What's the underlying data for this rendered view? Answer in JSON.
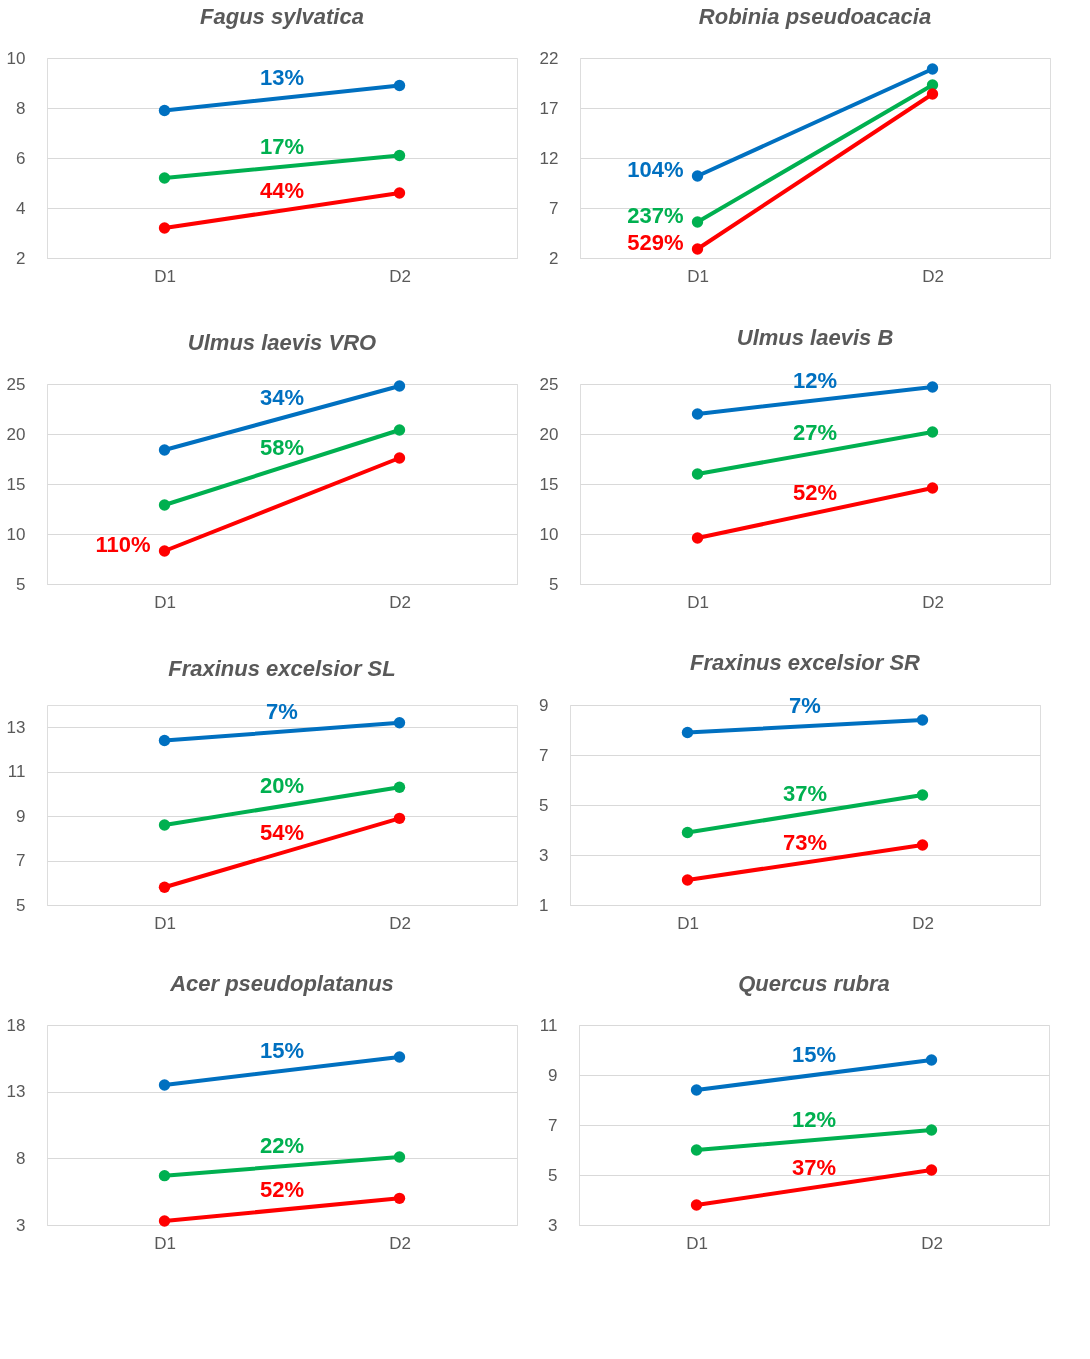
{
  "chart_data": [
    {
      "type": "line",
      "title": "Fagus sylvatica",
      "categories": [
        "D1",
        "D2"
      ],
      "ylim": [
        2,
        10
      ],
      "yticks": [
        2,
        4,
        6,
        8,
        10
      ],
      "grid": "y",
      "marker": "circle",
      "line_style": "solid",
      "series": [
        {
          "color": "#0070c0",
          "values": [
            7.9,
            8.9
          ]
        },
        {
          "color": "#00b050",
          "values": [
            5.2,
            6.1
          ]
        },
        {
          "color": "#ff0000",
          "values": [
            3.2,
            4.6
          ]
        }
      ],
      "annotations": [
        "13%",
        "17%",
        "44%"
      ]
    },
    {
      "type": "line",
      "title": "Robinia pseudoacacia",
      "categories": [
        "D1",
        "D2"
      ],
      "ylim": [
        2,
        22
      ],
      "yticks": [
        2,
        7,
        12,
        17,
        22
      ],
      "grid": "y",
      "marker": "circle",
      "line_style": "solid",
      "series": [
        {
          "color": "#0070c0",
          "values": [
            10.2,
            20.9
          ]
        },
        {
          "color": "#00b050",
          "values": [
            5.6,
            19.3
          ]
        },
        {
          "color": "#ff0000",
          "values": [
            2.9,
            18.4
          ]
        }
      ],
      "annotations": [
        "104%",
        "237%",
        "529%"
      ]
    },
    {
      "type": "line",
      "title": "Ulmus laevis VRO",
      "categories": [
        "D1",
        "D2"
      ],
      "ylim": [
        5,
        25
      ],
      "yticks": [
        5,
        10,
        15,
        20,
        25
      ],
      "grid": "y",
      "marker": "circle",
      "line_style": "solid",
      "series": [
        {
          "color": "#0070c0",
          "values": [
            18.4,
            24.8
          ]
        },
        {
          "color": "#00b050",
          "values": [
            12.9,
            20.4
          ]
        },
        {
          "color": "#ff0000",
          "values": [
            8.3,
            17.6
          ]
        }
      ],
      "annotations": [
        "34%",
        "58%",
        "110%"
      ]
    },
    {
      "type": "line",
      "title": "Ulmus laevis B",
      "categories": [
        "D1",
        "D2"
      ],
      "ylim": [
        5,
        25
      ],
      "yticks": [
        5,
        10,
        15,
        20,
        25
      ],
      "grid": "y",
      "marker": "circle",
      "line_style": "solid",
      "series": [
        {
          "color": "#0070c0",
          "values": [
            22.0,
            24.7
          ]
        },
        {
          "color": "#00b050",
          "values": [
            16.0,
            20.2
          ]
        },
        {
          "color": "#ff0000",
          "values": [
            9.6,
            14.6
          ]
        }
      ],
      "annotations": [
        "12%",
        "27%",
        "52%"
      ]
    },
    {
      "type": "line",
      "title": "Fraxinus excelsior SL",
      "categories": [
        "D1",
        "D2"
      ],
      "ylim": [
        5,
        14
      ],
      "yticks": [
        5,
        7,
        9,
        11,
        13
      ],
      "grid": "y",
      "marker": "circle",
      "line_style": "solid",
      "series": [
        {
          "color": "#0070c0",
          "values": [
            12.4,
            13.2
          ]
        },
        {
          "color": "#00b050",
          "values": [
            8.6,
            10.3
          ]
        },
        {
          "color": "#ff0000",
          "values": [
            5.8,
            8.9
          ]
        }
      ],
      "annotations": [
        "7%",
        "20%",
        "54%"
      ]
    },
    {
      "type": "line",
      "title": "Fraxinus excelsior SR",
      "categories": [
        "D1",
        "D2"
      ],
      "ylim": [
        1,
        9
      ],
      "yticks": [
        1,
        3,
        5,
        7,
        9
      ],
      "grid": "y",
      "marker": "circle",
      "line_style": "solid",
      "series": [
        {
          "color": "#0070c0",
          "values": [
            7.9,
            8.4
          ]
        },
        {
          "color": "#00b050",
          "values": [
            3.9,
            5.4
          ]
        },
        {
          "color": "#ff0000",
          "values": [
            2.0,
            3.4
          ]
        }
      ],
      "annotations": [
        "7%",
        "37%",
        "73%"
      ]
    },
    {
      "type": "line",
      "title": "Acer pseudoplatanus",
      "categories": [
        "D1",
        "D2"
      ],
      "ylim": [
        3,
        18
      ],
      "yticks": [
        3,
        8,
        13,
        18
      ],
      "grid": "y",
      "marker": "circle",
      "line_style": "solid",
      "series": [
        {
          "color": "#0070c0",
          "values": [
            13.5,
            15.6
          ]
        },
        {
          "color": "#00b050",
          "values": [
            6.7,
            8.1
          ]
        },
        {
          "color": "#ff0000",
          "values": [
            3.3,
            5.0
          ]
        }
      ],
      "annotations": [
        "15%",
        "22%",
        "52%"
      ]
    },
    {
      "type": "line",
      "title": "Quercus rubra",
      "categories": [
        "D1",
        "D2"
      ],
      "ylim": [
        3,
        11
      ],
      "yticks": [
        3,
        5,
        7,
        9,
        11
      ],
      "grid": "y",
      "marker": "circle",
      "line_style": "solid",
      "series": [
        {
          "color": "#0070c0",
          "values": [
            8.4,
            9.6
          ]
        },
        {
          "color": "#00b050",
          "values": [
            6.0,
            6.8
          ]
        },
        {
          "color": "#ff0000",
          "values": [
            3.8,
            5.2
          ]
        }
      ],
      "annotations": [
        "15%",
        "12%",
        "37%"
      ]
    }
  ]
}
